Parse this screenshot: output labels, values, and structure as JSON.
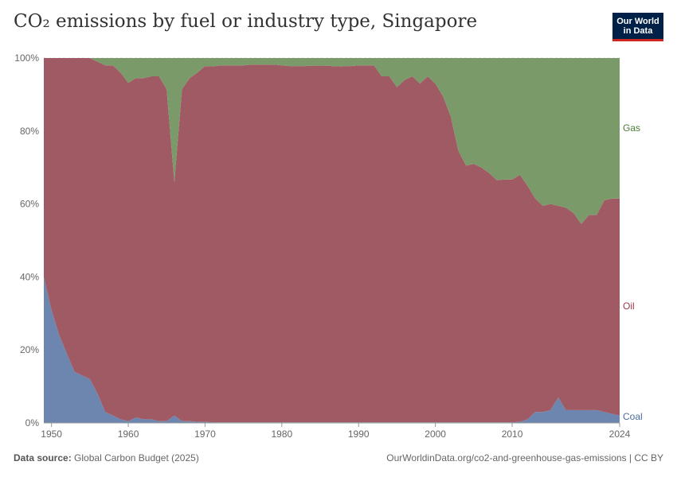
{
  "header": {
    "title": "CO₂ emissions by fuel or industry type, Singapore",
    "logo_line1": "Our World",
    "logo_line2": "in Data"
  },
  "footer": {
    "source_label": "Data source:",
    "source_text": "Global Carbon Budget (2025)",
    "url_text": "OurWorldinData.org/co2-and-greenhouse-gas-emissions | CC BY"
  },
  "colors": {
    "coal": "#6d86b0",
    "oil": "#a05a64",
    "gas": "#7a9a6a",
    "coal_label": "#4a6a9c",
    "oil_label": "#9a3a48",
    "gas_label": "#4a7a3a"
  },
  "chart_data": {
    "type": "area",
    "stacked": true,
    "y_unit": "percent",
    "ylim": [
      0,
      100
    ],
    "yticks": [
      0,
      20,
      40,
      60,
      80,
      100
    ],
    "ytick_labels": [
      "0%",
      "20%",
      "40%",
      "60%",
      "80%",
      "100%"
    ],
    "xlim": [
      1949,
      2024
    ],
    "xticks": [
      1950,
      1960,
      1970,
      1980,
      1990,
      2000,
      2010,
      2024
    ],
    "x": [
      1949,
      1950,
      1951,
      1952,
      1953,
      1954,
      1955,
      1956,
      1957,
      1958,
      1959,
      1960,
      1961,
      1962,
      1963,
      1964,
      1965,
      1966,
      1967,
      1968,
      1969,
      1970,
      1971,
      1972,
      1973,
      1974,
      1975,
      1976,
      1977,
      1978,
      1979,
      1980,
      1981,
      1982,
      1983,
      1984,
      1985,
      1986,
      1987,
      1988,
      1989,
      1990,
      1991,
      1992,
      1993,
      1994,
      1995,
      1996,
      1997,
      1998,
      1999,
      2000,
      2001,
      2002,
      2003,
      2004,
      2005,
      2006,
      2007,
      2008,
      2009,
      2010,
      2011,
      2012,
      2013,
      2014,
      2015,
      2016,
      2017,
      2018,
      2019,
      2020,
      2021,
      2022,
      2023,
      2024
    ],
    "series": [
      {
        "name": "Coal",
        "values": [
          40,
          31,
          24,
          19,
          14,
          13,
          12,
          8,
          3,
          2,
          1,
          0.5,
          1.5,
          1,
          1,
          0.5,
          0.5,
          2,
          0.5,
          0.5,
          0.3,
          0.3,
          0.2,
          0.2,
          0.2,
          0.2,
          0.2,
          0.2,
          0.2,
          0.2,
          0.2,
          0.2,
          0.2,
          0.2,
          0.2,
          0.2,
          0.2,
          0.2,
          0.2,
          0.2,
          0.2,
          0.2,
          0.2,
          0.2,
          0.2,
          0.2,
          0.2,
          0.2,
          0.2,
          0.2,
          0.2,
          0.2,
          0.2,
          0.2,
          0.2,
          0.2,
          0.2,
          0.2,
          0.2,
          0.2,
          0.2,
          0.2,
          0.3,
          1,
          3,
          3,
          3.5,
          7,
          3.5,
          3.5,
          3.5,
          3.5,
          3.5,
          3,
          2.5,
          2
        ]
      },
      {
        "name": "Oil",
        "values": [
          60,
          69,
          76,
          81,
          86,
          87,
          88,
          91,
          95,
          96,
          95,
          92.7,
          93,
          93.5,
          94,
          94.5,
          91,
          64,
          91,
          94,
          95.7,
          97.5,
          97.5,
          97.8,
          97.8,
          97.8,
          97.8,
          98,
          98,
          98,
          98,
          97.8,
          97.6,
          97.6,
          97.6,
          97.7,
          97.7,
          97.7,
          97.5,
          97.6,
          97.6,
          97.8,
          97.8,
          97.8,
          94.8,
          94.8,
          91.8,
          93.8,
          94.8,
          92.8,
          94.8,
          92.8,
          89.3,
          83.8,
          74.3,
          70.3,
          70.8,
          69.8,
          68.3,
          66.3,
          66.5,
          66.5,
          67.7,
          64,
          58.5,
          56.5,
          56.5,
          52.5,
          55.5,
          54,
          51,
          53.5,
          53.5,
          58,
          59,
          59.5
        ]
      },
      {
        "name": "Gas",
        "values": [
          0,
          0,
          0,
          0,
          0,
          0,
          0,
          1,
          2,
          2,
          4,
          6.8,
          5.5,
          5.5,
          5,
          5,
          8.5,
          34,
          8.5,
          5.5,
          4,
          2.2,
          2.3,
          2,
          2,
          2,
          2,
          1.8,
          1.8,
          1.8,
          1.8,
          2,
          2.2,
          2.2,
          2.2,
          2.1,
          2.1,
          2.1,
          2.3,
          2.2,
          2.2,
          2,
          2,
          2,
          5,
          5,
          8,
          6,
          5,
          7,
          5,
          7,
          10.5,
          16,
          25.5,
          29.5,
          29,
          30,
          31.5,
          33.5,
          33.3,
          33.3,
          32,
          35,
          38.5,
          40.5,
          40,
          40.5,
          41,
          42.5,
          45.5,
          43,
          43,
          39,
          38.5,
          38.5
        ]
      }
    ]
  }
}
